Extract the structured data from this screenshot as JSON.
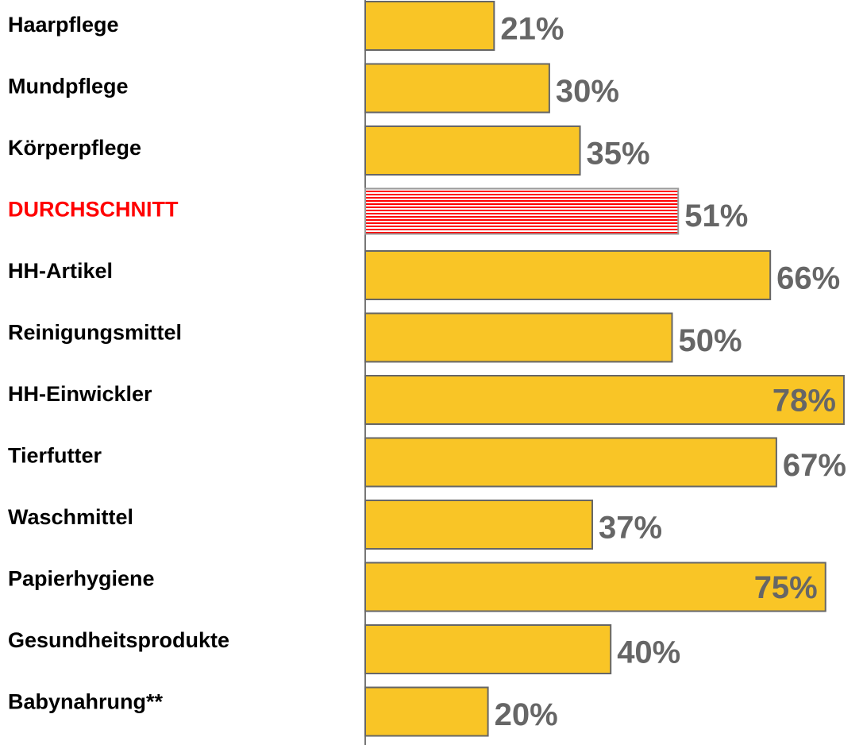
{
  "chart_data": {
    "type": "bar",
    "orientation": "horizontal",
    "categories": [
      "Haarpflege",
      "Mundpflege",
      "Körperpflege",
      "DURCHSCHNITT",
      "HH-Artikel",
      "Reinigungsmittel",
      "HH-Einwickler",
      "Tierfutter",
      "Waschmittel",
      "Papierhygiene",
      "Gesundheitsprodukte",
      "Babynahrung**"
    ],
    "values": [
      21,
      30,
      35,
      51,
      66,
      50,
      78,
      67,
      37,
      75,
      40,
      20
    ],
    "value_labels": [
      "21%",
      "30%",
      "35%",
      "51%",
      "66%",
      "50%",
      "78%",
      "67%",
      "37%",
      "75%",
      "40%",
      "20%"
    ],
    "color": "#f9c526",
    "highlight": {
      "index": 3,
      "color": "#ff0000",
      "pattern": "horizontal-stripes"
    }
  }
}
